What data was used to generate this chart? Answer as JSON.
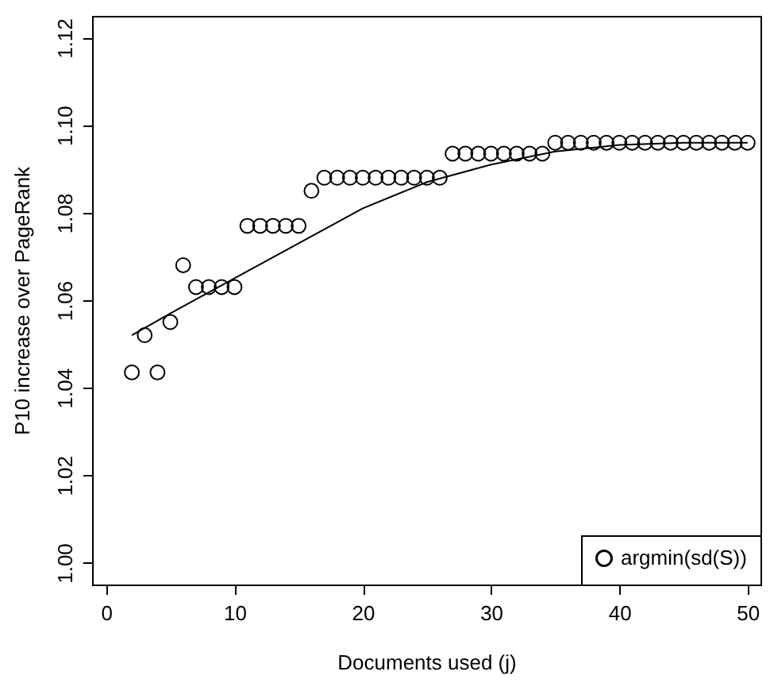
{
  "chart_data": {
    "type": "scatter",
    "xlabel": "Documents used (j)",
    "ylabel": "P10 increase over PageRank",
    "x": [
      2,
      3,
      4,
      5,
      6,
      7,
      8,
      9,
      10,
      11,
      12,
      13,
      14,
      15,
      16,
      17,
      18,
      19,
      20,
      21,
      22,
      23,
      24,
      25,
      26,
      27,
      28,
      29,
      30,
      31,
      32,
      33,
      34,
      35,
      36,
      37,
      38,
      39,
      40,
      41,
      42,
      43,
      44,
      45,
      46,
      47,
      48,
      49,
      50
    ],
    "series": [
      {
        "name": "argmin(sd(S))",
        "color": "#000000",
        "marker": "circle",
        "values": [
          1.0435,
          1.052,
          1.0435,
          1.055,
          1.068,
          1.063,
          1.063,
          1.063,
          1.063,
          1.077,
          1.077,
          1.077,
          1.077,
          1.077,
          1.085,
          1.088,
          1.088,
          1.088,
          1.088,
          1.088,
          1.088,
          1.088,
          1.088,
          1.088,
          1.088,
          1.0935,
          1.0935,
          1.0935,
          1.0935,
          1.0935,
          1.0935,
          1.0935,
          1.0935,
          1.096,
          1.096,
          1.096,
          1.096,
          1.096,
          1.096,
          1.096,
          1.096,
          1.096,
          1.096,
          1.096,
          1.096,
          1.096,
          1.096,
          1.096,
          1.096
        ]
      },
      {
        "color": "#000000",
        "type": "line",
        "line_style": "solid",
        "x": [
          2,
          5,
          10,
          15,
          20,
          25,
          30,
          35,
          40,
          45,
          50
        ],
        "values": [
          1.052,
          1.057,
          1.065,
          1.073,
          1.081,
          1.087,
          1.091,
          1.094,
          1.0955,
          1.096,
          1.096
        ]
      }
    ],
    "xlim": [
      -1.1,
      51
    ],
    "ylim": [
      0.995,
      1.125
    ],
    "xticks": [
      0,
      10,
      20,
      30,
      40,
      50
    ],
    "yticks": [
      {
        "value": 1.0,
        "label": "1.00"
      },
      1.02,
      1.04,
      1.06,
      1.08,
      {
        "value": 1.1,
        "label": "1.10"
      },
      1.12
    ],
    "grid": false,
    "legend": "bottom right"
  }
}
